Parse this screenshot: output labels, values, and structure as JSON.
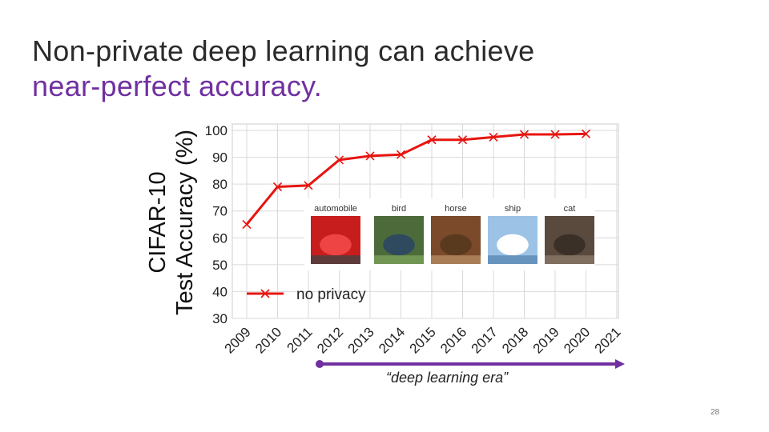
{
  "slide": {
    "title_line1": "Non-private deep learning can achieve",
    "title_line2": "near-perfect accuracy.",
    "era_label": "“deep learning era”",
    "slide_number": "28",
    "colors": {
      "accent": "#7030a0",
      "series": "#e8140f",
      "grid": "#d9d9d9"
    }
  },
  "chart_data": {
    "type": "line",
    "title": "",
    "ylabel_line1": "CIFAR-10",
    "ylabel_line2": "Test Accuracy (%)",
    "xlabel": "",
    "x": [
      2009,
      2010,
      2011,
      2012,
      2013,
      2014,
      2015,
      2016,
      2017,
      2018,
      2019,
      2020,
      2021
    ],
    "xlim": [
      2009,
      2021
    ],
    "ylim": [
      30,
      100
    ],
    "yticks": [
      30,
      40,
      50,
      60,
      70,
      80,
      90,
      100
    ],
    "grid": true,
    "legend_position": "bottom-left",
    "series": [
      {
        "name": "no privacy",
        "marker": "x",
        "points": [
          [
            2009,
            65
          ],
          [
            2010,
            79
          ],
          [
            2011,
            79.5
          ],
          [
            2012,
            89
          ],
          [
            2013,
            90.5
          ],
          [
            2014,
            91
          ],
          [
            2015,
            96.5
          ],
          [
            2016,
            96.5
          ],
          [
            2017,
            97.5
          ],
          [
            2018,
            98.5
          ],
          [
            2019,
            98.5
          ],
          [
            2020,
            98.7
          ]
        ]
      }
    ],
    "inset_images": [
      {
        "label": "automobile",
        "icon": "red-car-photo"
      },
      {
        "label": "bird",
        "icon": "bird-photo"
      },
      {
        "label": "horse",
        "icon": "horse-photo"
      },
      {
        "label": "ship",
        "icon": "ship-photo"
      },
      {
        "label": "cat",
        "icon": "cat-photo"
      }
    ]
  }
}
